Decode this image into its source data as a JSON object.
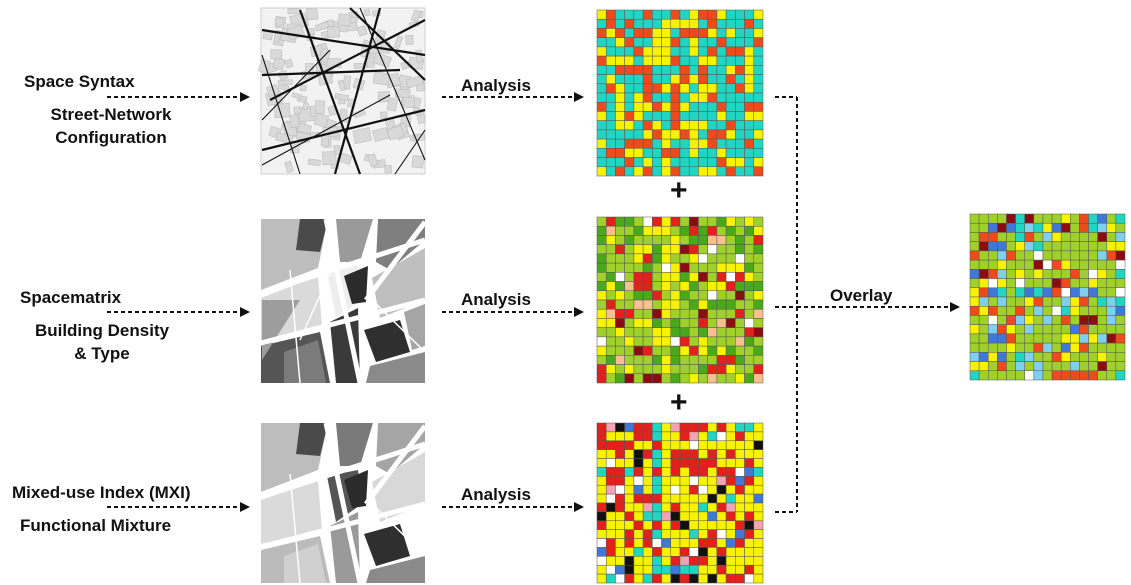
{
  "rows": [
    {
      "method": "Space Syntax",
      "description_lines": [
        "Street-Network",
        "Configuration"
      ],
      "arrow_label": "Analysis"
    },
    {
      "method": "Spacematrix",
      "description_lines": [
        "Building Density",
        "& Type"
      ],
      "arrow_label": "Analysis"
    },
    {
      "method": "Mixed-use Index (MXI)",
      "description_lines": [
        "Functional Mixture"
      ],
      "arrow_label": "Analysis"
    }
  ],
  "plus_sign": "+",
  "overlay_label": "Overlay",
  "colors": {
    "arrow": "#111111",
    "grid_line": "#555555",
    "teal": "#20d6c2",
    "yellow": "#f7f200",
    "orange_red": "#ef4a1c",
    "green_light": "#9fd12a",
    "green_dark": "#4aa81b",
    "dark_red": "#8d0c12",
    "red": "#e3201b",
    "salmon": "#f6c08f",
    "black": "#111111",
    "light_blue": "#7fd0ef",
    "blue": "#3f78d8",
    "pink": "#f3a3b3"
  }
}
